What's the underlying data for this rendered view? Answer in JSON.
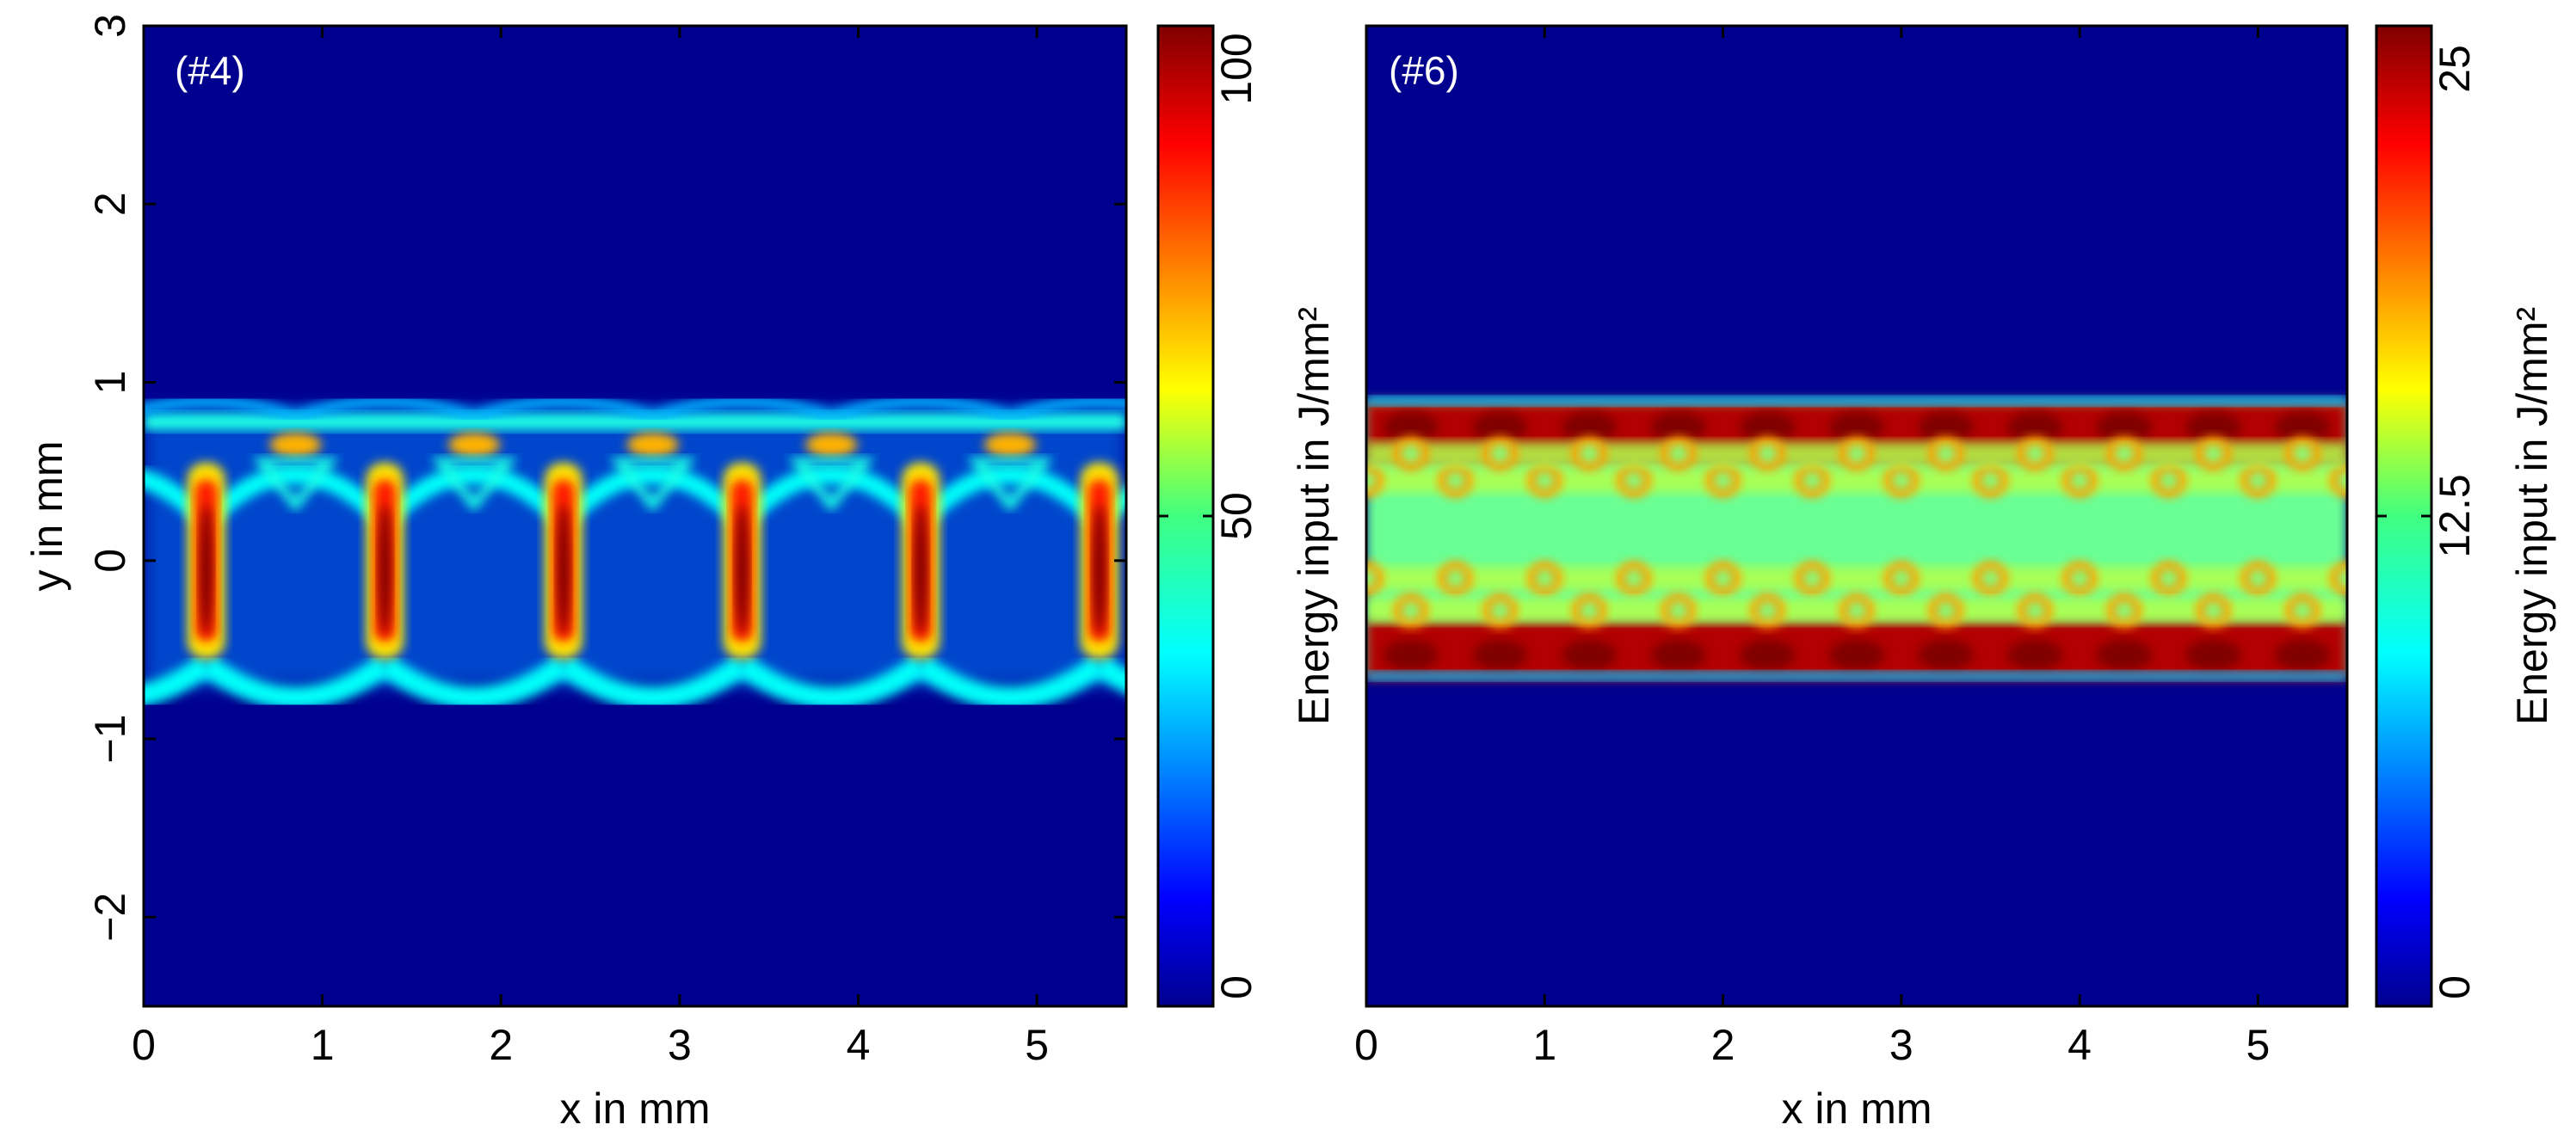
{
  "figure": {
    "colors": {
      "background": "#00008f",
      "colormap": "jet",
      "frame": "#000000",
      "panel_tag": "#ffffff"
    }
  },
  "chart_data": [
    {
      "type": "heatmap",
      "panel_label": "(#4)",
      "xlabel": "x in mm",
      "ylabel": "y in mm",
      "xlim": [
        0,
        5.5
      ],
      "ylim": [
        -2.5,
        3
      ],
      "xticks": [
        "0",
        "1",
        "2",
        "3",
        "4",
        "5"
      ],
      "xtick_values": [
        0,
        1,
        2,
        3,
        4,
        5
      ],
      "yticks": [
        "−2",
        "−1",
        "0",
        "1",
        "2",
        "3"
      ],
      "ytick_values": [
        -2,
        -1,
        0,
        1,
        2,
        3
      ],
      "colorbar": {
        "label": "Energy input in J/mm²",
        "range": [
          0,
          100
        ],
        "ticks": [
          "0",
          "50",
          "100"
        ],
        "tick_values": [
          0,
          50,
          100
        ],
        "colormap": "jet"
      },
      "pattern": {
        "description_shape": "scan-track-lattice",
        "band_y": [
          -0.7,
          0.85
        ],
        "upper_edge_y": 0.78,
        "lower_edge_y": -0.62,
        "upper_row_hotspot_y": 0.65,
        "upper_row_hotspot_x": [
          0.85,
          1.85,
          2.85,
          3.85,
          4.85
        ],
        "upper_row_hotspot_value": 70,
        "vertical_strut_x": [
          0.35,
          1.35,
          2.35,
          3.35,
          4.35,
          5.35
        ],
        "vertical_strut_y": [
          -0.55,
          0.55
        ],
        "vertical_strut_peak_value": 100,
        "edge_line_value": 40,
        "arc_value": 38
      }
    },
    {
      "type": "heatmap",
      "panel_label": "(#6)",
      "xlabel": "x in mm",
      "ylabel": "",
      "xlim": [
        0,
        5.5
      ],
      "ylim": [
        -2.5,
        3
      ],
      "xticks": [
        "0",
        "1",
        "2",
        "3",
        "4",
        "5"
      ],
      "xtick_values": [
        0,
        1,
        2,
        3,
        4,
        5
      ],
      "colorbar": {
        "label": "Energy input in J/mm²",
        "range": [
          0,
          25
        ],
        "ticks": [
          "0",
          "12.5",
          "25"
        ],
        "tick_values": [
          0,
          12.5,
          25
        ],
        "colormap": "jet"
      },
      "pattern": {
        "description_shape": "filled-band",
        "band_y": [
          -0.65,
          0.9
        ],
        "top_edge_row_y": 0.72,
        "bottom_edge_row_y": -0.5,
        "edge_row_value": 25,
        "dot_rows_y": [
          0.45,
          0.6,
          -0.1,
          -0.28
        ],
        "dot_spacing_x": 0.5,
        "dot_value": 18,
        "interior_value": 12
      }
    }
  ]
}
